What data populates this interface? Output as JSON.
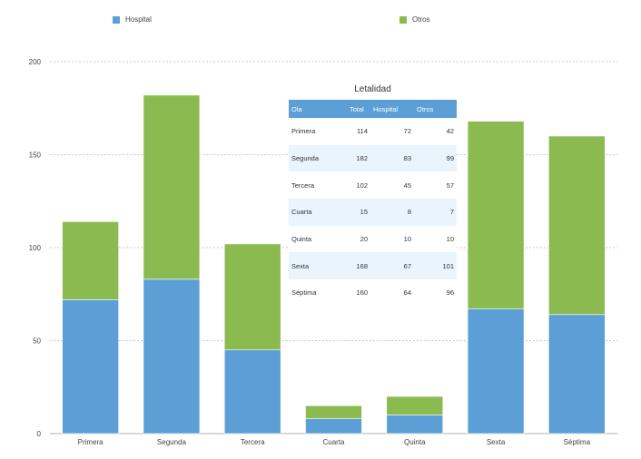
{
  "legend": {
    "hospital": {
      "label": "Hospital",
      "color": "#5b9fd6"
    },
    "otros": {
      "label": "Otros",
      "color": "#8bbb50"
    }
  },
  "chart_data": {
    "type": "bar",
    "stacked": true,
    "categories": [
      "Primera",
      "Segunda",
      "Tercera",
      "Cuarta",
      "Quinta",
      "Sexta",
      "Séptima"
    ],
    "series": [
      {
        "name": "Hospital",
        "color": "#5b9fd6",
        "values": [
          72,
          83,
          45,
          8,
          10,
          67,
          64
        ]
      },
      {
        "name": "Otros",
        "color": "#8bbb50",
        "values": [
          42,
          99,
          57,
          7,
          10,
          101,
          96
        ]
      }
    ],
    "ylim": [
      0,
      200
    ],
    "yticks": [
      0,
      50,
      100,
      150,
      200
    ],
    "grid": true,
    "legend_position": "top"
  },
  "table": {
    "title": "Letalidad",
    "headers": [
      "Ola",
      "Total",
      "Hospital",
      "Otros"
    ],
    "rows": [
      [
        "Primera",
        "114",
        "72",
        "42"
      ],
      [
        "Segunda",
        "182",
        "83",
        "99"
      ],
      [
        "Tercera",
        "102",
        "45",
        "57"
      ],
      [
        "Cuarta",
        "15",
        "8",
        "7"
      ],
      [
        "Quinta",
        "20",
        "10",
        "10"
      ],
      [
        "Sexta",
        "168",
        "67",
        "101"
      ],
      [
        "Séptima",
        "160",
        "64",
        "96"
      ]
    ]
  }
}
